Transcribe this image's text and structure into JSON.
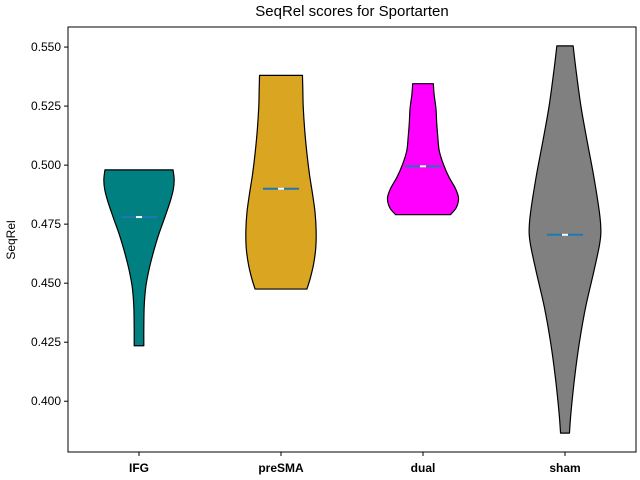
{
  "chart_data": {
    "type": "violin",
    "title": "SeqRel scores for Sportarten",
    "xlabel": "",
    "ylabel": "SeqRel",
    "ylim": [
      0.3785,
      0.5585
    ],
    "yticks": [
      0.4,
      0.425,
      0.45,
      0.475,
      0.5,
      0.525,
      0.55
    ],
    "ytick_labels": [
      "0.400",
      "0.425",
      "0.450",
      "0.475",
      "0.500",
      "0.525",
      "0.550"
    ],
    "categories": [
      "IFG",
      "preSMA",
      "dual",
      "sham"
    ],
    "grid": false,
    "series": [
      {
        "category": "IFG",
        "color": "#008080",
        "min": 0.4235,
        "max": 0.498,
        "median": 0.478,
        "profile": [
          [
            0.4235,
            0.13
          ],
          [
            0.43,
            0.13
          ],
          [
            0.44,
            0.14
          ],
          [
            0.448,
            0.18
          ],
          [
            0.455,
            0.26
          ],
          [
            0.462,
            0.37
          ],
          [
            0.47,
            0.52
          ],
          [
            0.478,
            0.7
          ],
          [
            0.485,
            0.85
          ],
          [
            0.49,
            0.93
          ],
          [
            0.494,
            0.95
          ],
          [
            0.498,
            0.92
          ]
        ]
      },
      {
        "category": "preSMA",
        "color": "#DAA520",
        "min": 0.4475,
        "max": 0.538,
        "median": 0.49,
        "profile": [
          [
            0.4475,
            0.7
          ],
          [
            0.452,
            0.79
          ],
          [
            0.458,
            0.88
          ],
          [
            0.465,
            0.94
          ],
          [
            0.472,
            0.95
          ],
          [
            0.48,
            0.92
          ],
          [
            0.488,
            0.85
          ],
          [
            0.496,
            0.77
          ],
          [
            0.505,
            0.7
          ],
          [
            0.515,
            0.64
          ],
          [
            0.525,
            0.6
          ],
          [
            0.532,
            0.59
          ],
          [
            0.538,
            0.58
          ]
        ]
      },
      {
        "category": "dual",
        "color": "#FF00FF",
        "min": 0.479,
        "max": 0.5345,
        "median": 0.4995,
        "profile": [
          [
            0.479,
            0.74
          ],
          [
            0.482,
            0.9
          ],
          [
            0.486,
            0.96
          ],
          [
            0.49,
            0.88
          ],
          [
            0.495,
            0.7
          ],
          [
            0.5,
            0.56
          ],
          [
            0.506,
            0.44
          ],
          [
            0.512,
            0.4
          ],
          [
            0.518,
            0.37
          ],
          [
            0.524,
            0.35
          ],
          [
            0.53,
            0.3
          ],
          [
            0.5345,
            0.28
          ]
        ]
      },
      {
        "category": "sham",
        "color": "#808080",
        "min": 0.3865,
        "max": 0.5505,
        "median": 0.4705,
        "profile": [
          [
            0.3865,
            0.12
          ],
          [
            0.395,
            0.16
          ],
          [
            0.41,
            0.26
          ],
          [
            0.425,
            0.39
          ],
          [
            0.44,
            0.56
          ],
          [
            0.455,
            0.78
          ],
          [
            0.466,
            0.93
          ],
          [
            0.472,
            0.97
          ],
          [
            0.48,
            0.93
          ],
          [
            0.495,
            0.78
          ],
          [
            0.51,
            0.6
          ],
          [
            0.525,
            0.43
          ],
          [
            0.54,
            0.3
          ],
          [
            0.5505,
            0.22
          ]
        ]
      }
    ]
  }
}
